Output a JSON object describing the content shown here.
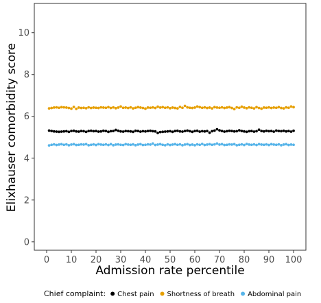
{
  "chart_data": {
    "type": "scatter",
    "xlabel": "Admission rate percentile",
    "ylabel": "Elixhauser comorbidity score",
    "xlim": [
      -5,
      105
    ],
    "ylim": [
      -0.4,
      11.4
    ],
    "x_ticks": [
      0,
      10,
      20,
      30,
      40,
      50,
      60,
      70,
      80,
      90,
      100
    ],
    "y_ticks": [
      0,
      2,
      4,
      6,
      8,
      10
    ],
    "grid": false,
    "legend": {
      "title": "Chief complaint:",
      "position": "bottom"
    },
    "series": [
      {
        "name": "Chest pain",
        "color": "#000000",
        "x_range": [
          1,
          100
        ],
        "values": [
          5.32,
          5.3,
          5.28,
          5.27,
          5.26,
          5.27,
          5.28,
          5.29,
          5.26,
          5.3,
          5.31,
          5.28,
          5.27,
          5.3,
          5.29,
          5.26,
          5.3,
          5.31,
          5.29,
          5.3,
          5.27,
          5.28,
          5.31,
          5.3,
          5.26,
          5.29,
          5.3,
          5.35,
          5.31,
          5.28,
          5.27,
          5.3,
          5.29,
          5.28,
          5.26,
          5.31,
          5.3,
          5.27,
          5.29,
          5.28,
          5.3,
          5.31,
          5.29,
          5.28,
          5.21,
          5.25,
          5.26,
          5.27,
          5.28,
          5.29,
          5.26,
          5.3,
          5.31,
          5.28,
          5.27,
          5.3,
          5.32,
          5.29,
          5.26,
          5.3,
          5.31,
          5.27,
          5.29,
          5.28,
          5.3,
          5.22,
          5.29,
          5.32,
          5.38,
          5.33,
          5.3,
          5.27,
          5.29,
          5.31,
          5.3,
          5.28,
          5.29,
          5.33,
          5.3,
          5.28,
          5.26,
          5.29,
          5.3,
          5.27,
          5.29,
          5.36,
          5.3,
          5.28,
          5.31,
          5.29,
          5.3,
          5.27,
          5.32,
          5.3,
          5.29,
          5.31,
          5.28,
          5.3,
          5.27,
          5.31
        ]
      },
      {
        "name": "Shortness of breath",
        "color": "#E69F00",
        "x_range": [
          1,
          100
        ],
        "values": [
          6.38,
          6.4,
          6.42,
          6.43,
          6.41,
          6.44,
          6.43,
          6.42,
          6.4,
          6.37,
          6.45,
          6.36,
          6.42,
          6.4,
          6.41,
          6.39,
          6.43,
          6.4,
          6.42,
          6.41,
          6.4,
          6.43,
          6.42,
          6.41,
          6.44,
          6.4,
          6.43,
          6.39,
          6.42,
          6.47,
          6.41,
          6.42,
          6.4,
          6.43,
          6.38,
          6.41,
          6.44,
          6.42,
          6.4,
          6.37,
          6.42,
          6.41,
          6.43,
          6.4,
          6.46,
          6.42,
          6.44,
          6.41,
          6.43,
          6.39,
          6.42,
          6.4,
          6.38,
          6.45,
          6.41,
          6.5,
          6.43,
          6.41,
          6.4,
          6.42,
          6.47,
          6.44,
          6.41,
          6.43,
          6.4,
          6.42,
          6.38,
          6.44,
          6.42,
          6.41,
          6.43,
          6.4,
          6.42,
          6.44,
          6.4,
          6.35,
          6.43,
          6.41,
          6.46,
          6.42,
          6.39,
          6.43,
          6.41,
          6.38,
          6.44,
          6.4,
          6.37,
          6.42,
          6.41,
          6.43,
          6.4,
          6.42,
          6.41,
          6.44,
          6.4,
          6.38,
          6.43,
          6.41,
          6.47,
          6.44
        ]
      },
      {
        "name": "Abdominal pain",
        "color": "#56B4E9",
        "x_range": [
          1,
          100
        ],
        "values": [
          4.61,
          4.64,
          4.66,
          4.63,
          4.65,
          4.67,
          4.64,
          4.66,
          4.62,
          4.65,
          4.67,
          4.63,
          4.64,
          4.66,
          4.65,
          4.67,
          4.62,
          4.64,
          4.66,
          4.63,
          4.67,
          4.65,
          4.64,
          4.66,
          4.63,
          4.67,
          4.62,
          4.65,
          4.66,
          4.64,
          4.63,
          4.67,
          4.65,
          4.64,
          4.66,
          4.62,
          4.65,
          4.67,
          4.63,
          4.64,
          4.66,
          4.65,
          4.7,
          4.63,
          4.65,
          4.67,
          4.64,
          4.62,
          4.66,
          4.63,
          4.65,
          4.67,
          4.64,
          4.66,
          4.62,
          4.65,
          4.67,
          4.63,
          4.65,
          4.62,
          4.66,
          4.64,
          4.68,
          4.63,
          4.65,
          4.67,
          4.64,
          4.66,
          4.7,
          4.65,
          4.67,
          4.63,
          4.64,
          4.66,
          4.65,
          4.67,
          4.62,
          4.64,
          4.66,
          4.63,
          4.68,
          4.65,
          4.64,
          4.66,
          4.63,
          4.67,
          4.65,
          4.64,
          4.66,
          4.63,
          4.67,
          4.65,
          4.64,
          4.66,
          4.62,
          4.65,
          4.67,
          4.63,
          4.65,
          4.64
        ]
      }
    ]
  }
}
